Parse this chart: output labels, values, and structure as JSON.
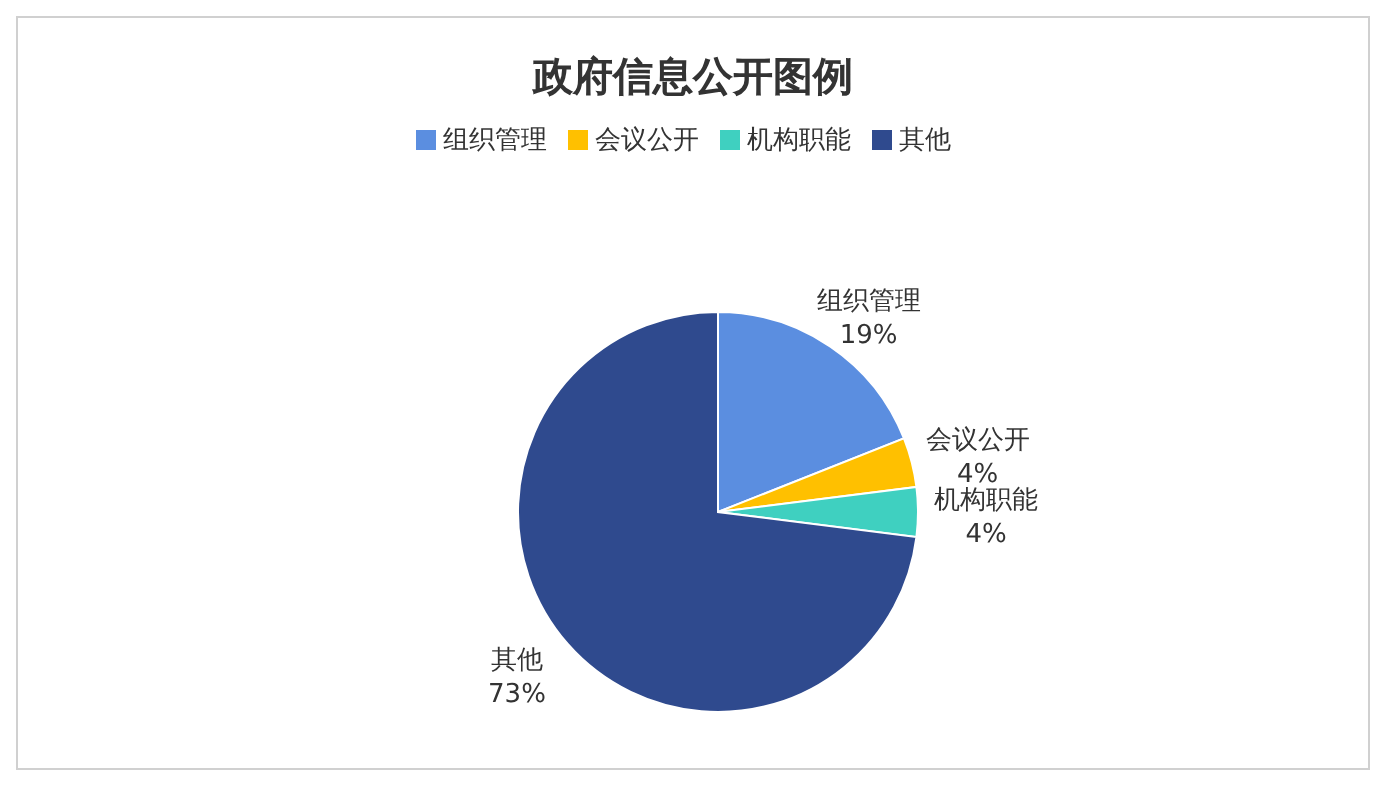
{
  "chart_data": {
    "type": "pie",
    "title": "政府信息公开图例",
    "categories": [
      "组织管理",
      "会议公开",
      "机构职能",
      "其他"
    ],
    "values": [
      19,
      4,
      4,
      73
    ],
    "colors": [
      "#5b8ee0",
      "#ffc000",
      "#3fd0c0",
      "#2f4a8e"
    ],
    "value_labels": [
      "19%",
      "4%",
      "4%",
      "73%"
    ],
    "legend": "top"
  }
}
